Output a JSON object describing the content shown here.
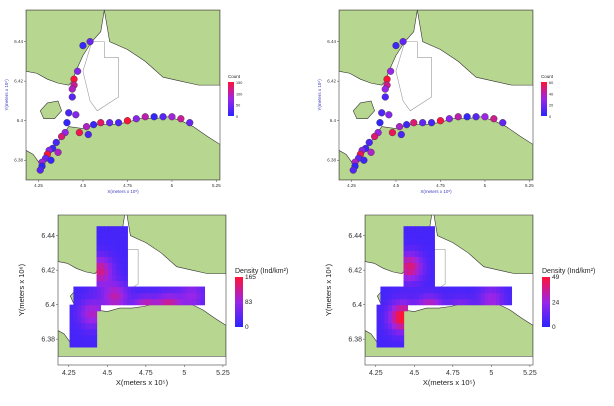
{
  "colors": {
    "land": "#b7d68f",
    "land_stroke": "#333333",
    "sea": "#ffffff",
    "grid": "#e6e6e6",
    "frame": "#444444",
    "low": "#2b25ff",
    "mid": "#9b25e8",
    "high": "#ff1238"
  },
  "icons": {
    "marker": "circle-marker-icon"
  },
  "chart_data": [
    {
      "type": "scatter",
      "xlabel": "X(meters x 10⁵)",
      "ylabel": "Y(meters x 10⁶)",
      "xticks": [
        "4.25",
        "4.5",
        "4.75",
        "5",
        "5.25"
      ],
      "yticks": [
        "6.44",
        "6.42",
        "6.4",
        "6.38"
      ],
      "xlim": [
        4.18,
        5.27
      ],
      "ylim": [
        6.37,
        6.456
      ],
      "legend_title": "Count",
      "legend_ticks": [
        "150",
        "100",
        "50",
        "0"
      ],
      "legend_max": 150,
      "points": [
        [
          4.54,
          6.44,
          40
        ],
        [
          4.5,
          6.438,
          10
        ],
        [
          4.47,
          6.425,
          60
        ],
        [
          4.45,
          6.421,
          150
        ],
        [
          4.45,
          6.418,
          110
        ],
        [
          4.44,
          6.416,
          90
        ],
        [
          4.44,
          6.412,
          30
        ],
        [
          4.42,
          6.404,
          20
        ],
        [
          4.46,
          6.403,
          60
        ],
        [
          4.41,
          6.399,
          5
        ],
        [
          4.4,
          6.394,
          70
        ],
        [
          4.38,
          6.392,
          120
        ],
        [
          4.35,
          6.389,
          20
        ],
        [
          4.33,
          6.386,
          10
        ],
        [
          4.31,
          6.385,
          60
        ],
        [
          4.3,
          6.383,
          150
        ],
        [
          4.29,
          6.381,
          40
        ],
        [
          4.27,
          6.379,
          80
        ],
        [
          4.27,
          6.377,
          5
        ],
        [
          4.26,
          6.375,
          30
        ],
        [
          4.52,
          6.397,
          90
        ],
        [
          4.56,
          6.398,
          10
        ],
        [
          4.6,
          6.399,
          130
        ],
        [
          4.65,
          6.399,
          40
        ],
        [
          4.7,
          6.399,
          20
        ],
        [
          4.75,
          6.4,
          150
        ],
        [
          4.8,
          6.401,
          60
        ],
        [
          4.85,
          6.402,
          100
        ],
        [
          4.9,
          6.402,
          5
        ],
        [
          4.95,
          6.402,
          30
        ],
        [
          5.0,
          6.402,
          80
        ],
        [
          5.05,
          6.401,
          110
        ],
        [
          5.1,
          6.399,
          40
        ],
        [
          4.53,
          6.393,
          20
        ],
        [
          4.48,
          6.394,
          140
        ],
        [
          4.36,
          6.384,
          90
        ],
        [
          4.32,
          6.38,
          10
        ]
      ]
    },
    {
      "type": "scatter",
      "xlabel": "X(meters x 10⁵)",
      "ylabel": "Y(meters x 10⁶)",
      "xticks": [
        "4.25",
        "4.5",
        "4.75",
        "5",
        "5.25"
      ],
      "yticks": [
        "6.44",
        "6.42",
        "6.4",
        "6.38"
      ],
      "xlim": [
        4.18,
        5.27
      ],
      "ylim": [
        6.37,
        6.456
      ],
      "legend_title": "Count",
      "legend_ticks": [
        "60",
        "40",
        "20",
        "0"
      ],
      "legend_max": 60,
      "points": [
        [
          4.54,
          6.44,
          15
        ],
        [
          4.5,
          6.438,
          5
        ],
        [
          4.47,
          6.425,
          30
        ],
        [
          4.45,
          6.421,
          60
        ],
        [
          4.45,
          6.418,
          45
        ],
        [
          4.44,
          6.416,
          30
        ],
        [
          4.44,
          6.412,
          10
        ],
        [
          4.42,
          6.404,
          10
        ],
        [
          4.46,
          6.403,
          25
        ],
        [
          4.41,
          6.399,
          2
        ],
        [
          4.4,
          6.394,
          30
        ],
        [
          4.38,
          6.392,
          50
        ],
        [
          4.35,
          6.389,
          10
        ],
        [
          4.33,
          6.386,
          5
        ],
        [
          4.31,
          6.385,
          25
        ],
        [
          4.3,
          6.383,
          55
        ],
        [
          4.29,
          6.381,
          15
        ],
        [
          4.27,
          6.379,
          35
        ],
        [
          4.27,
          6.377,
          2
        ],
        [
          4.26,
          6.375,
          12
        ],
        [
          4.52,
          6.397,
          35
        ],
        [
          4.56,
          6.398,
          5
        ],
        [
          4.6,
          6.399,
          50
        ],
        [
          4.65,
          6.399,
          15
        ],
        [
          4.7,
          6.399,
          8
        ],
        [
          4.75,
          6.4,
          58
        ],
        [
          4.8,
          6.401,
          25
        ],
        [
          4.85,
          6.402,
          40
        ],
        [
          4.9,
          6.402,
          2
        ],
        [
          4.95,
          6.402,
          12
        ],
        [
          5.0,
          6.402,
          30
        ],
        [
          5.05,
          6.401,
          45
        ],
        [
          5.1,
          6.399,
          15
        ],
        [
          4.53,
          6.393,
          8
        ],
        [
          4.48,
          6.394,
          55
        ],
        [
          4.36,
          6.384,
          35
        ],
        [
          4.32,
          6.38,
          5
        ]
      ]
    },
    {
      "type": "heatmap",
      "xlabel": "X(meters x 10⁵)",
      "ylabel": "Y(meters x 10⁶)",
      "xticks": [
        "4.25",
        "4.5",
        "4.75",
        "5",
        "5.25"
      ],
      "yticks": [
        "6.44",
        "6.42",
        "6.4",
        "6.38"
      ],
      "xlim": [
        4.18,
        5.27
      ],
      "ylim": [
        6.365,
        6.452
      ],
      "legend_title": "Density (Ind/km²)",
      "legend_ticks": [
        "165",
        "83",
        "0"
      ],
      "legend_max": 165,
      "hotspots": [
        [
          4.45,
          6.42,
          110
        ],
        [
          4.4,
          6.395,
          80
        ],
        [
          4.75,
          6.395,
          165
        ],
        [
          4.9,
          6.398,
          120
        ],
        [
          5.05,
          6.405,
          60
        ],
        [
          4.55,
          6.405,
          90
        ]
      ]
    },
    {
      "type": "heatmap",
      "xlabel": "X(meters x 10⁵)",
      "ylabel": "Y(meters x 10⁶)",
      "xticks": [
        "4.25",
        "4.5",
        "4.75",
        "5",
        "5.25"
      ],
      "yticks": [
        "6.44",
        "6.42",
        "6.4",
        "6.38"
      ],
      "xlim": [
        4.18,
        5.27
      ],
      "ylim": [
        6.365,
        6.452
      ],
      "legend_title": "Density (Ind/km²)",
      "legend_ticks": [
        "49",
        "24",
        "0"
      ],
      "legend_max": 49,
      "hotspots": [
        [
          4.47,
          6.422,
          35
        ],
        [
          4.42,
          6.393,
          45
        ],
        [
          4.6,
          6.396,
          40
        ],
        [
          4.8,
          6.394,
          30
        ],
        [
          5.0,
          6.403,
          20
        ]
      ]
    }
  ]
}
